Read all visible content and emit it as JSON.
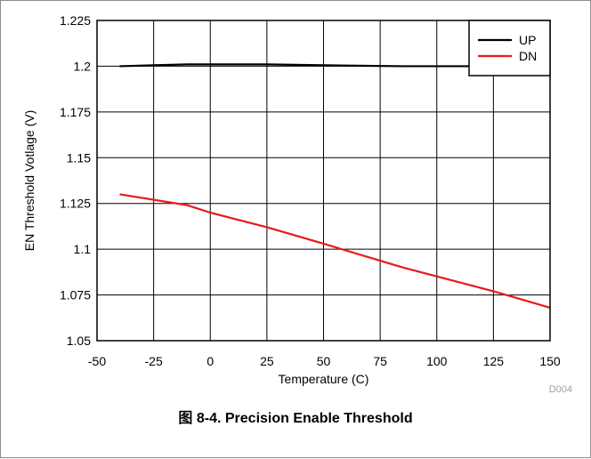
{
  "caption": "图 8-4. Precision Enable Threshold",
  "figure_id": "D004",
  "chart_data": {
    "type": "line",
    "title": "",
    "xlabel": "Temperature (C)",
    "ylabel": "EN Threshold Votlage (V)",
    "xlim": [
      -50,
      150
    ],
    "ylim": [
      1.05,
      1.225
    ],
    "xticks": [
      -50,
      -25,
      0,
      25,
      50,
      75,
      100,
      125,
      150
    ],
    "xtick_labels": [
      "-50",
      "-25",
      "0",
      "25",
      "50",
      "75",
      "100",
      "125",
      "150"
    ],
    "yticks": [
      1.05,
      1.075,
      1.1,
      1.125,
      1.15,
      1.175,
      1.2,
      1.225
    ],
    "ytick_labels": [
      "1.05",
      "1.075",
      "1.1",
      "1.125",
      "1.15",
      "1.175",
      "1.2",
      "1.225"
    ],
    "grid": true,
    "legend_position": "top-right",
    "series": [
      {
        "name": "UP",
        "color": "#000000",
        "x": [
          -40,
          -25,
          -10,
          0,
          25,
          50,
          85,
          105,
          125
        ],
        "y": [
          1.2,
          1.2005,
          1.201,
          1.201,
          1.201,
          1.2005,
          1.2,
          1.2,
          1.2
        ]
      },
      {
        "name": "DN",
        "color": "#e8191b",
        "x": [
          -40,
          -25,
          -10,
          0,
          25,
          50,
          85,
          125,
          150
        ],
        "y": [
          1.13,
          1.127,
          1.124,
          1.12,
          1.112,
          1.103,
          1.09,
          1.077,
          1.068
        ]
      }
    ]
  }
}
